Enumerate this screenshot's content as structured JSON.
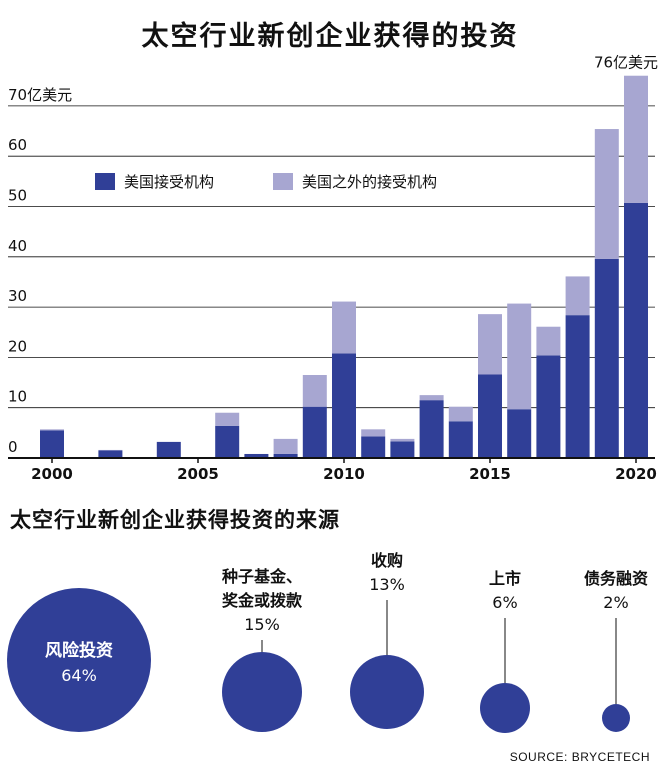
{
  "colors": {
    "us": "#303f97",
    "non_us": "#a7a6d1",
    "grid": "#111111",
    "bubble": "#303f97",
    "text": "#111111"
  },
  "main_title": "太空行业新创企业获得的投资",
  "chart_data": {
    "type": "bar",
    "stacked": true,
    "ylabel": "70亿美元",
    "ylim": [
      0,
      76
    ],
    "yticks": [
      "0",
      "10",
      "20",
      "30",
      "40",
      "50",
      "60",
      "70亿美元"
    ],
    "ytick_values": [
      0,
      10,
      20,
      30,
      40,
      50,
      60,
      70
    ],
    "xticks": [
      "2000",
      "2005",
      "2010",
      "2015",
      "2020"
    ],
    "xtick_values": [
      2000,
      2005,
      2010,
      2015,
      2020
    ],
    "grid": true,
    "legend_position": "top-left",
    "categories": [
      2000,
      2001,
      2002,
      2003,
      2004,
      2005,
      2006,
      2007,
      2008,
      2009,
      2010,
      2011,
      2012,
      2013,
      2014,
      2015,
      2016,
      2017,
      2018,
      2019,
      2020
    ],
    "series": [
      {
        "name": "美国接受机构",
        "values": [
          5.5,
          0,
          1.5,
          0,
          3.2,
          0.2,
          6.4,
          0.8,
          0.8,
          10.2,
          20.8,
          4.3,
          3.3,
          11.5,
          7.3,
          16.6,
          9.7,
          20.4,
          28.4,
          39.6,
          50.7
        ]
      },
      {
        "name": "美国之外的接受机构",
        "values": [
          0.2,
          0,
          0.1,
          0,
          0,
          0,
          2.6,
          0,
          3.0,
          6.3,
          10.3,
          1.4,
          0.5,
          1.0,
          2.9,
          12.0,
          21.0,
          5.7,
          7.7,
          25.8,
          25.3
        ]
      }
    ],
    "annotations": [
      {
        "x": 2020,
        "text": "76亿美元"
      }
    ]
  },
  "section2_title": "太空行业新创企业获得投资的来源",
  "funding_sources": [
    {
      "name_lines": [
        "风险投资"
      ],
      "percent": "64%",
      "share": 0.64,
      "label_inside": true
    },
    {
      "name_lines": [
        "种子基金、",
        "奖金或拨款"
      ],
      "percent": "15%",
      "share": 0.15,
      "label_inside": false
    },
    {
      "name_lines": [
        "收购"
      ],
      "percent": "13%",
      "share": 0.13,
      "label_inside": false
    },
    {
      "name_lines": [
        "上市"
      ],
      "percent": "6%",
      "share": 0.06,
      "label_inside": false
    },
    {
      "name_lines": [
        "债务融资"
      ],
      "percent": "2%",
      "share": 0.02,
      "label_inside": false
    }
  ],
  "source": "SOURCE: BRYCETECH"
}
